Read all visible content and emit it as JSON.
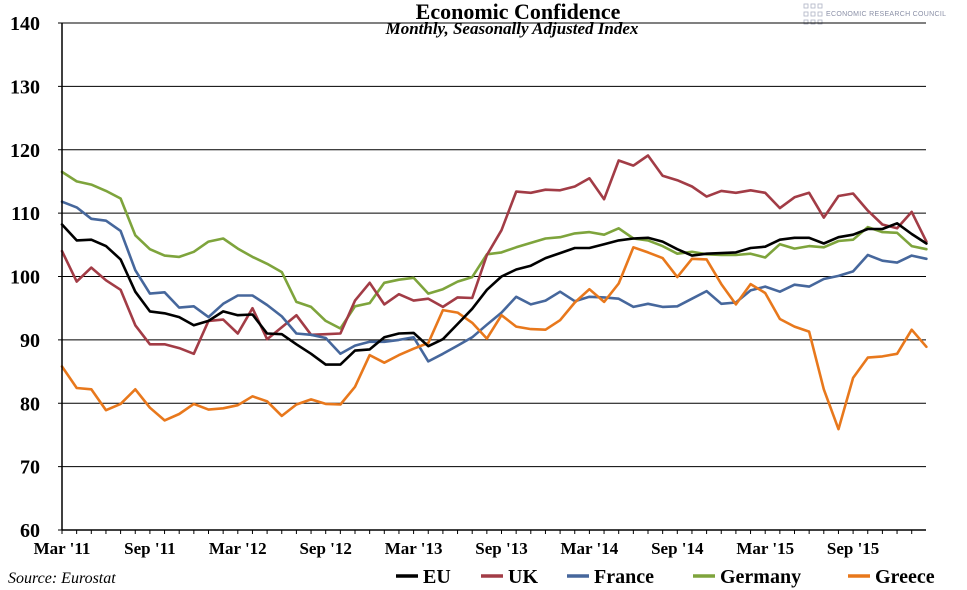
{
  "chart_data": {
    "type": "line",
    "title": "Economic Confidence",
    "subtitle": "Monthly, Seasonally Adjusted Index",
    "source": "Source: Eurostat",
    "brand": "ECONOMIC RESEARCH COUNCIL",
    "ylim": [
      60,
      140
    ],
    "yticks": [
      "60",
      "70",
      "80",
      "90",
      "100",
      "110",
      "120",
      "130",
      "140"
    ],
    "xlim": [
      "2011-03",
      "2016-01"
    ],
    "xticks": [
      "Mar '11",
      "Sep '11",
      "Mar '12",
      "Sep '12",
      "Mar '13",
      "Sep '13",
      "Mar '14",
      "Sep '14",
      "Mar '15",
      "Sep '15"
    ],
    "grid": true,
    "legend_position": "bottom",
    "x": [
      "2011-03",
      "2011-04",
      "2011-05",
      "2011-06",
      "2011-07",
      "2011-08",
      "2011-09",
      "2011-10",
      "2011-11",
      "2011-12",
      "2012-01",
      "2012-02",
      "2012-03",
      "2012-04",
      "2012-05",
      "2012-06",
      "2012-07",
      "2012-08",
      "2012-09",
      "2012-10",
      "2012-11",
      "2012-12",
      "2013-01",
      "2013-02",
      "2013-03",
      "2013-04",
      "2013-05",
      "2013-06",
      "2013-07",
      "2013-08",
      "2013-09",
      "2013-10",
      "2013-11",
      "2013-12",
      "2014-01",
      "2014-02",
      "2014-03",
      "2014-04",
      "2014-05",
      "2014-06",
      "2014-07",
      "2014-08",
      "2014-09",
      "2014-10",
      "2014-11",
      "2014-12",
      "2015-01",
      "2015-02",
      "2015-03",
      "2015-04",
      "2015-05",
      "2015-06",
      "2015-07",
      "2015-08",
      "2015-09",
      "2015-10",
      "2015-11",
      "2015-12",
      "2016-01",
      "2016-02"
    ],
    "series": [
      {
        "name": "EU",
        "color": "#000000",
        "values": [
          108.2,
          105.7,
          105.8,
          104.8,
          102.7,
          97.6,
          94.5,
          94.2,
          93.6,
          92.3,
          93.0,
          94.5,
          93.9,
          94.0,
          91.0,
          90.9,
          89.3,
          87.8,
          86.1,
          86.1,
          88.3,
          88.5,
          90.4,
          91.0,
          91.1,
          89.0,
          90.1,
          92.5,
          94.9,
          97.9,
          100.0,
          101.1,
          101.7,
          102.9,
          103.7,
          104.5,
          104.5,
          105.1,
          105.7,
          106.0,
          106.1,
          105.5,
          104.3,
          103.3,
          103.6,
          103.7,
          103.8,
          104.5,
          104.7,
          105.8,
          106.1,
          106.1,
          105.2,
          106.2,
          106.6,
          107.5,
          107.5,
          108.4,
          106.7,
          105.2
        ]
      },
      {
        "name": "UK",
        "color": "#a23c46",
        "values": [
          104.0,
          99.2,
          101.4,
          99.4,
          97.9,
          92.3,
          89.3,
          89.3,
          88.7,
          87.8,
          93.0,
          93.2,
          91.0,
          95.0,
          90.1,
          92.0,
          93.9,
          90.8,
          90.9,
          91.0,
          96.2,
          99.0,
          95.6,
          97.2,
          96.2,
          96.5,
          95.2,
          96.7,
          96.6,
          103.4,
          107.3,
          113.4,
          113.2,
          113.7,
          113.6,
          114.2,
          115.5,
          112.2,
          118.3,
          117.5,
          119.1,
          115.9,
          115.2,
          114.2,
          112.6,
          113.5,
          113.2,
          113.6,
          113.2,
          110.8,
          112.5,
          113.2,
          109.3,
          112.7,
          113.1,
          110.4,
          108.2,
          107.6,
          110.2,
          105.5
        ]
      },
      {
        "name": "France",
        "color": "#46679c",
        "values": [
          111.8,
          110.9,
          109.1,
          108.8,
          107.2,
          101.0,
          97.3,
          97.5,
          95.1,
          95.3,
          93.6,
          95.7,
          97.0,
          97.0,
          95.5,
          93.7,
          91.0,
          90.8,
          90.3,
          87.8,
          89.1,
          89.7,
          89.7,
          90.0,
          90.4,
          86.6,
          87.8,
          89.1,
          90.4,
          92.4,
          94.3,
          96.8,
          95.6,
          96.2,
          97.6,
          96.1,
          96.8,
          96.7,
          96.5,
          95.2,
          95.7,
          95.2,
          95.3,
          96.5,
          97.7,
          95.7,
          95.9,
          97.8,
          98.4,
          97.6,
          98.7,
          98.4,
          99.6,
          100.1,
          100.8,
          103.4,
          102.5,
          102.2,
          103.3,
          102.8
        ]
      },
      {
        "name": "Germany",
        "color": "#7ea43c",
        "values": [
          116.5,
          115.0,
          114.5,
          113.5,
          112.3,
          106.5,
          104.3,
          103.3,
          103.1,
          103.9,
          105.5,
          106.0,
          104.4,
          103.1,
          102.0,
          100.7,
          96.0,
          95.2,
          93.0,
          91.8,
          95.3,
          95.8,
          99.0,
          99.5,
          99.8,
          97.3,
          98.0,
          99.2,
          99.9,
          103.5,
          103.8,
          104.6,
          105.3,
          106.0,
          106.2,
          106.8,
          107.0,
          106.6,
          107.6,
          106.0,
          105.7,
          104.8,
          103.6,
          103.9,
          103.5,
          103.4,
          103.4,
          103.6,
          103.0,
          105.1,
          104.4,
          104.8,
          104.6,
          105.6,
          105.8,
          107.8,
          107.0,
          106.9,
          104.8,
          104.3
        ]
      },
      {
        "name": "Greece",
        "color": "#e8781c",
        "values": [
          85.8,
          82.4,
          82.2,
          78.9,
          79.9,
          82.2,
          79.3,
          77.3,
          78.3,
          79.9,
          79.0,
          79.2,
          79.7,
          81.1,
          80.3,
          78.0,
          79.8,
          80.6,
          79.9,
          79.8,
          82.6,
          87.6,
          86.4,
          87.6,
          88.6,
          89.5,
          94.7,
          94.3,
          92.7,
          90.2,
          93.9,
          92.1,
          91.7,
          91.6,
          93.1,
          95.9,
          98.0,
          96.0,
          98.9,
          104.6,
          103.8,
          102.9,
          99.9,
          102.8,
          102.7,
          98.8,
          95.6,
          98.8,
          97.4,
          93.3,
          92.1,
          91.3,
          82.2,
          75.9,
          84.0,
          87.2,
          87.4,
          87.8,
          91.6,
          88.9
        ]
      }
    ]
  }
}
